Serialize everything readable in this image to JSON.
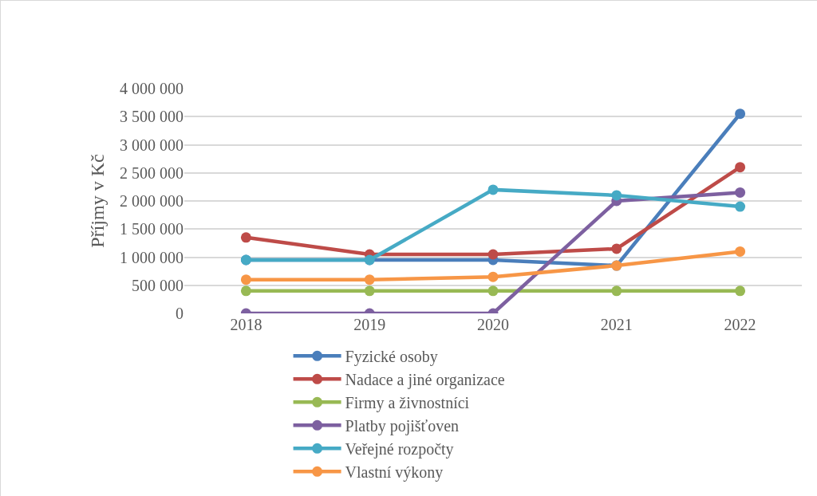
{
  "chart_data": {
    "type": "line",
    "ylabel": "Příjmy v Kč",
    "categories": [
      "2018",
      "2019",
      "2020",
      "2021",
      "2022"
    ],
    "series": [
      {
        "name": "Fyzické osoby",
        "color": "#4a7ebb",
        "values": [
          950000,
          950000,
          950000,
          850000,
          3550000
        ]
      },
      {
        "name": "Nadace a jiné organizace",
        "color": "#be4b48",
        "values": [
          1350000,
          1050000,
          1050000,
          1150000,
          2600000
        ]
      },
      {
        "name": "Firmy a živnostníci",
        "color": "#98b954",
        "values": [
          400000,
          400000,
          400000,
          400000,
          400000
        ]
      },
      {
        "name": "Platby pojišťoven",
        "color": "#7d60a0",
        "values": [
          0,
          0,
          0,
          2000000,
          2150000
        ]
      },
      {
        "name": "Veřejné rozpočty",
        "color": "#46aac5",
        "values": [
          950000,
          950000,
          2200000,
          2100000,
          1900000
        ]
      },
      {
        "name": "Vlastní výkony",
        "color": "#f79646",
        "values": [
          600000,
          600000,
          650000,
          850000,
          1100000
        ]
      }
    ],
    "ylim": [
      0,
      4000000
    ],
    "yticks": [
      {
        "value": 0,
        "label": "0"
      },
      {
        "value": 500000,
        "label": "500 000"
      },
      {
        "value": 1000000,
        "label": "1 000 000"
      },
      {
        "value": 1500000,
        "label": "1 500 000"
      },
      {
        "value": 2000000,
        "label": "2 000 000"
      },
      {
        "value": 2500000,
        "label": "2 500 000"
      },
      {
        "value": 3000000,
        "label": "3 000 000"
      },
      {
        "value": 3500000,
        "label": "3 500 000"
      },
      {
        "value": 4000000,
        "label": "4 000 000"
      }
    ],
    "grid": "y",
    "legend": "bottom",
    "marker": "circle",
    "line_style": "solid"
  }
}
